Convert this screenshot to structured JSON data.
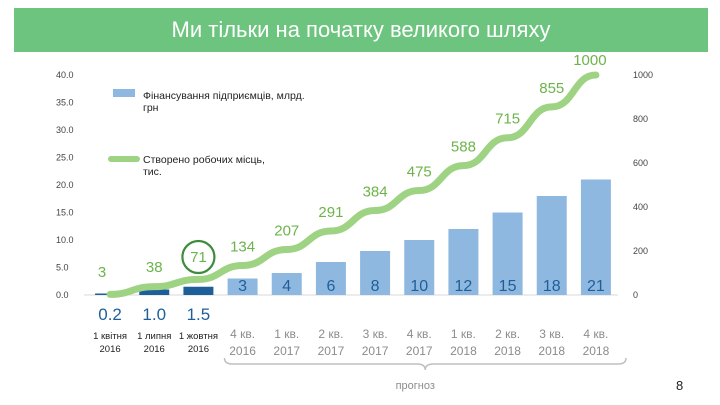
{
  "title": "Ми тільки на початку великого шляху",
  "page_number": "8",
  "colors": {
    "banner": "#6cc47e",
    "bar_light": "#8fb8e0",
    "bar_dark": "#1f5f99",
    "line": "#9fd384",
    "line_label": "#6cb44a",
    "bar_label": "#1f5f99",
    "highlight_circle": "#3d8b3d",
    "bracket": "#bfbfbf"
  },
  "chart_data": {
    "type": "bar+line",
    "categories": [
      "1 квітня 2016",
      "1 липня 2016",
      "1 жовтня 2016",
      "4 кв. 2016",
      "1 кв. 2017",
      "2 кв. 2017",
      "3 кв. 2017",
      "4 кв. 2017",
      "1 кв. 2018",
      "2 кв. 2018",
      "3 кв. 2018",
      "4 кв. 2018"
    ],
    "category_lines": [
      [
        "1 квітня",
        "2016"
      ],
      [
        "1 липня",
        "2016"
      ],
      [
        "1 жовтня",
        "2016"
      ],
      [
        "4 кв.",
        "2016"
      ],
      [
        "1 кв.",
        "2017"
      ],
      [
        "2 кв.",
        "2017"
      ],
      [
        "3 кв.",
        "2017"
      ],
      [
        "4 кв.",
        "2017"
      ],
      [
        "1 кв.",
        "2018"
      ],
      [
        "2 кв.",
        "2018"
      ],
      [
        "3 кв.",
        "2018"
      ],
      [
        "4 кв.",
        "2018"
      ]
    ],
    "series": [
      {
        "name": "Фінансування підприємців, млрд. грн",
        "axis": "left",
        "values": [
          0.2,
          1.0,
          1.5,
          3,
          4,
          6,
          8,
          10,
          12,
          15,
          18,
          21
        ],
        "labels": [
          "0.2",
          "1.0",
          "1.5",
          "3",
          "4",
          "6",
          "8",
          "10",
          "12",
          "15",
          "18",
          "21"
        ]
      },
      {
        "name": "Створено робочих місць, тис.",
        "axis": "right",
        "values": [
          3,
          38,
          71,
          134,
          207,
          291,
          384,
          475,
          588,
          715,
          855,
          1000
        ],
        "labels": [
          "3",
          "38",
          "71",
          "134",
          "207",
          "291",
          "384",
          "475",
          "588",
          "715",
          "855",
          "1000"
        ]
      }
    ],
    "legend_lines": [
      [
        "Фінансування підприємців, млрд.",
        "грн"
      ],
      [
        "Створено робочих місць,",
        "тис."
      ]
    ],
    "y_left": {
      "ticks": [
        "0.0",
        "5.0",
        "10.0",
        "15.0",
        "20.0",
        "25.0",
        "30.0",
        "35.0",
        "40.0"
      ],
      "range": [
        0,
        40
      ]
    },
    "y_right": {
      "ticks": [
        "0",
        "200",
        "400",
        "600",
        "800",
        "1000"
      ],
      "range": [
        0,
        1000
      ]
    },
    "forecast_label": "прогноз",
    "forecast_from_category": "4 кв. 2016",
    "highlighted_point": "71",
    "legend_position": "top-left",
    "grid": false
  }
}
